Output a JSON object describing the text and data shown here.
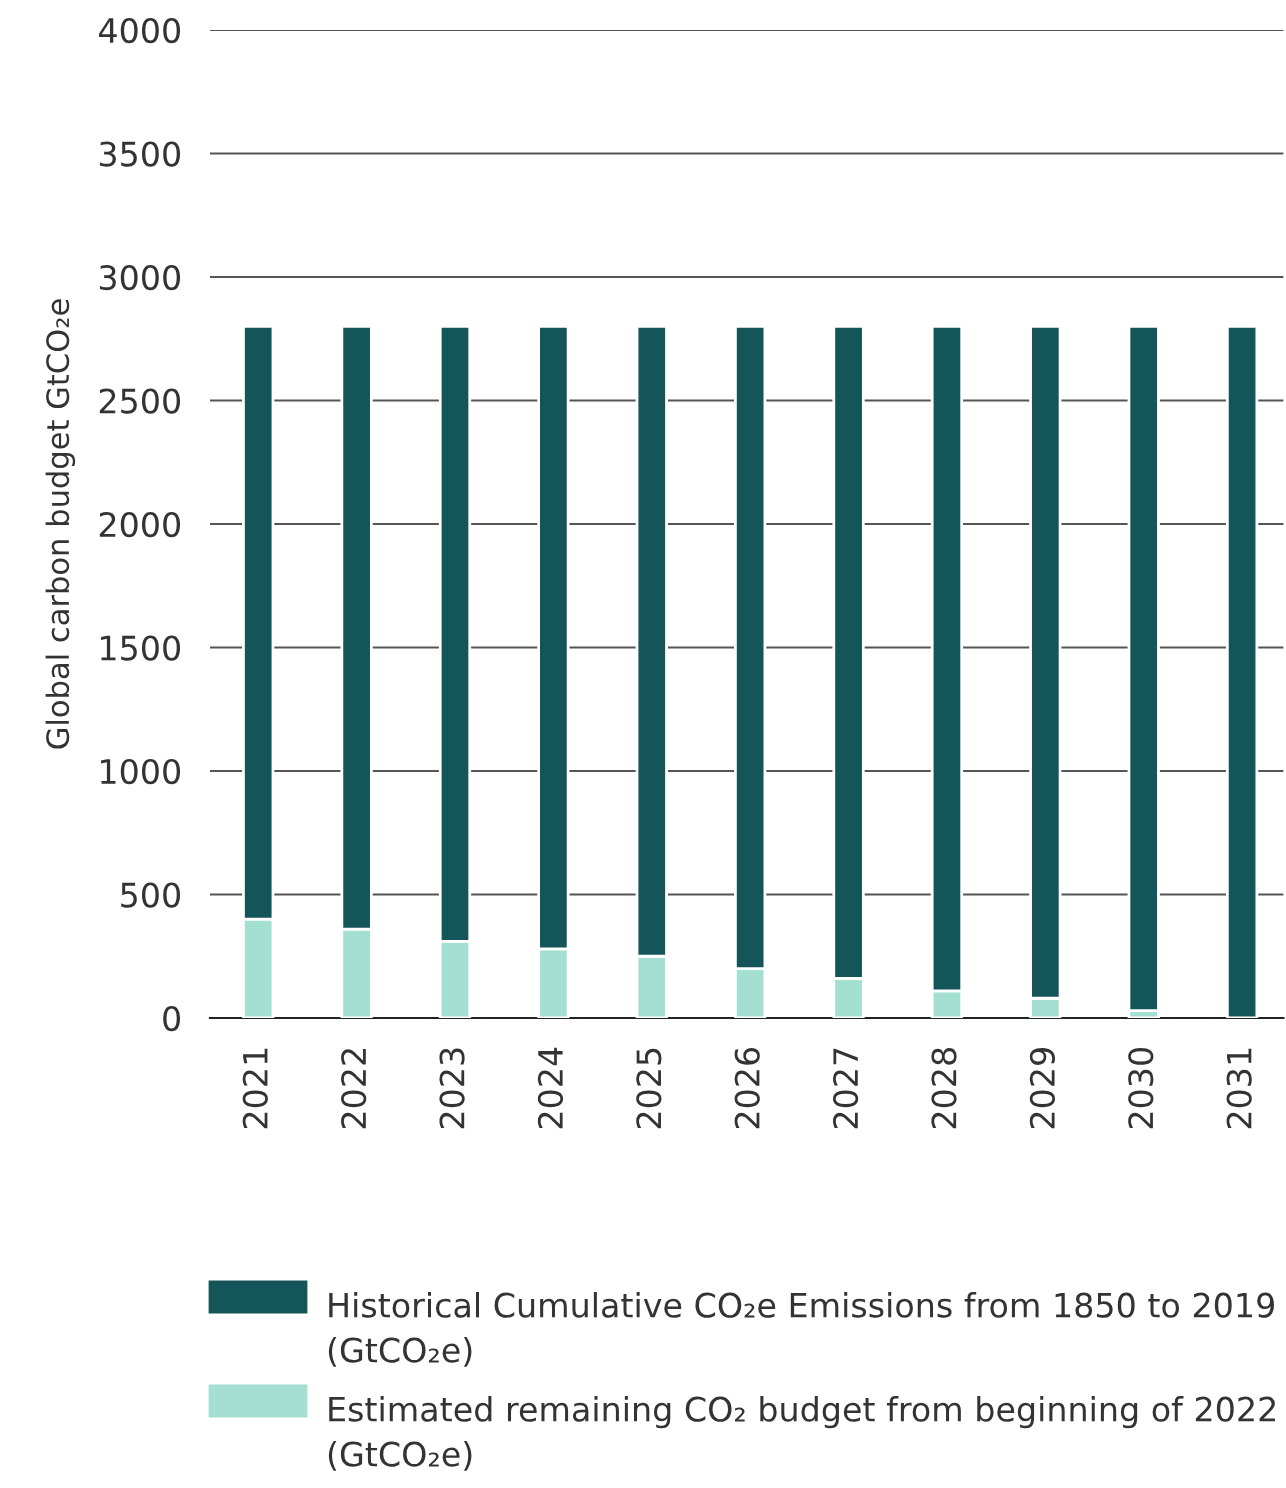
{
  "chart_data": {
    "type": "bar",
    "stacked": true,
    "ylabel": "Global carbon budget GtCO₂e",
    "categories": [
      "2021",
      "2022",
      "2023",
      "2024",
      "2025",
      "2026",
      "2027",
      "2028",
      "2029",
      "2030",
      "2031"
    ],
    "series": [
      {
        "name": "Estimated remaining CO₂ budget from beginning of 2022 (GtCO₂e)",
        "color": "#a3e0d2",
        "values": [
          400,
          360,
          310,
          280,
          250,
          200,
          160,
          110,
          80,
          30,
          0
        ]
      },
      {
        "name": "Historical Cumulative CO₂e Emissions from 1850 to 2019 (GtCO₂e)",
        "color": "#14555a",
        "values": [
          2400,
          2440,
          2490,
          2520,
          2550,
          2600,
          2640,
          2690,
          2720,
          2770,
          2800
        ]
      }
    ],
    "ylim": [
      0,
      4000
    ],
    "yticks": [
      0,
      500,
      1000,
      1500,
      2000,
      2500,
      3000,
      3500,
      4000
    ],
    "grid": "y",
    "legend": "bottom"
  }
}
